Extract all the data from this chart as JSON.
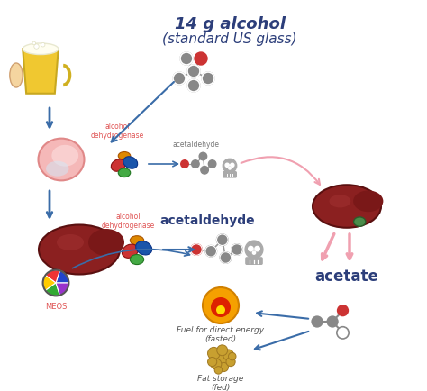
{
  "title_line1": "14 g alcohol",
  "title_line2": "(standard US glass)",
  "title_color": "#2c3e7a",
  "title_fontsize": 13,
  "subtitle_fontsize": 11,
  "labels": {
    "alcohol_dehydrogenase_stomach": "alcohol\ndehydrogenase",
    "acetaldehyde_small": "acetaldehyde",
    "alcohol_dehydrogenase_liver": "alcohol\ndehydrogenase",
    "acetaldehyde_large": "acetaldehyde",
    "meos": "MEOS",
    "acetate": "acetate",
    "fuel": "Fuel for direct energy\n(fasted)",
    "fat": "Fat storage\n(fed)"
  },
  "label_color_red": "#e05555",
  "label_color_dark": "#2c3e7a",
  "label_color_gray": "#555555",
  "bg_color": "#ffffff",
  "arrow_color_blue": "#3a6ca8",
  "arrow_color_pink": "#f0a0b0",
  "stomach_color": "#f4a0a0",
  "liver_color": "#8b2020",
  "flame_color": "#f5a623",
  "fat_color": "#c8a030",
  "molecule_gray": "#888888",
  "molecule_dark": "#444444",
  "molecule_red": "#cc3333",
  "molecule_white": "#ffffff",
  "skull_color": "#aaaaaa"
}
